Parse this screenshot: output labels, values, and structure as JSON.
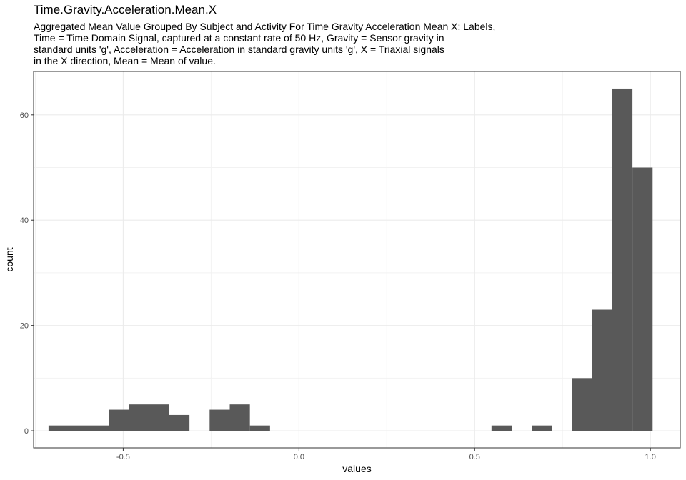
{
  "chart_data": {
    "type": "bar",
    "title": "Time.Gravity.Acceleration.Mean.X",
    "subtitle_lines": [
      "Aggregated Mean Value Grouped By Subject and Activity For Time Gravity Acceleration Mean X: Labels,",
      "Time = Time Domain Signal, captured at a constant rate of 50 Hz, Gravity = Sensor gravity in",
      "standard units 'g', Acceleration = Acceleration in standard gravity units 'g', X = Triaxial signals",
      "in the X direction, Mean = Mean of value."
    ],
    "xlabel": "values",
    "ylabel": "count",
    "xlim": [
      -0.755,
      1.085
    ],
    "ylim": [
      -3.25,
      68.25
    ],
    "x_ticks": [
      {
        "value": -0.5,
        "label": "-0.5"
      },
      {
        "value": 0.0,
        "label": "0.0"
      },
      {
        "value": 0.5,
        "label": "0.5"
      },
      {
        "value": 1.0,
        "label": "1.0"
      }
    ],
    "y_ticks": [
      {
        "value": 0,
        "label": "0"
      },
      {
        "value": 20,
        "label": "20"
      },
      {
        "value": 40,
        "label": "40"
      },
      {
        "value": 60,
        "label": "60"
      }
    ],
    "grid": true,
    "bar_color": "#595959",
    "bin_width": 0.0573,
    "bins": [
      {
        "x0": -0.7125,
        "x1": -0.6552,
        "count": 1
      },
      {
        "x0": -0.6552,
        "x1": -0.5979,
        "count": 1
      },
      {
        "x0": -0.5979,
        "x1": -0.5406,
        "count": 1
      },
      {
        "x0": -0.5406,
        "x1": -0.4833,
        "count": 4
      },
      {
        "x0": -0.4833,
        "x1": -0.426,
        "count": 5
      },
      {
        "x0": -0.426,
        "x1": -0.3688,
        "count": 5
      },
      {
        "x0": -0.3688,
        "x1": -0.3115,
        "count": 3
      },
      {
        "x0": -0.3115,
        "x1": -0.2542,
        "count": 0
      },
      {
        "x0": -0.2542,
        "x1": -0.1969,
        "count": 4
      },
      {
        "x0": -0.1969,
        "x1": -0.1396,
        "count": 5
      },
      {
        "x0": -0.1396,
        "x1": -0.0823,
        "count": 1
      },
      {
        "x0": 0.5479,
        "x1": 0.6052,
        "count": 1
      },
      {
        "x0": 0.6625,
        "x1": 0.7198,
        "count": 1
      },
      {
        "x0": 0.7771,
        "x1": 0.8344,
        "count": 10
      },
      {
        "x0": 0.8344,
        "x1": 0.8917,
        "count": 23
      },
      {
        "x0": 0.8917,
        "x1": 0.949,
        "count": 65
      },
      {
        "x0": 0.949,
        "x1": 1.0063,
        "count": 50
      }
    ]
  }
}
